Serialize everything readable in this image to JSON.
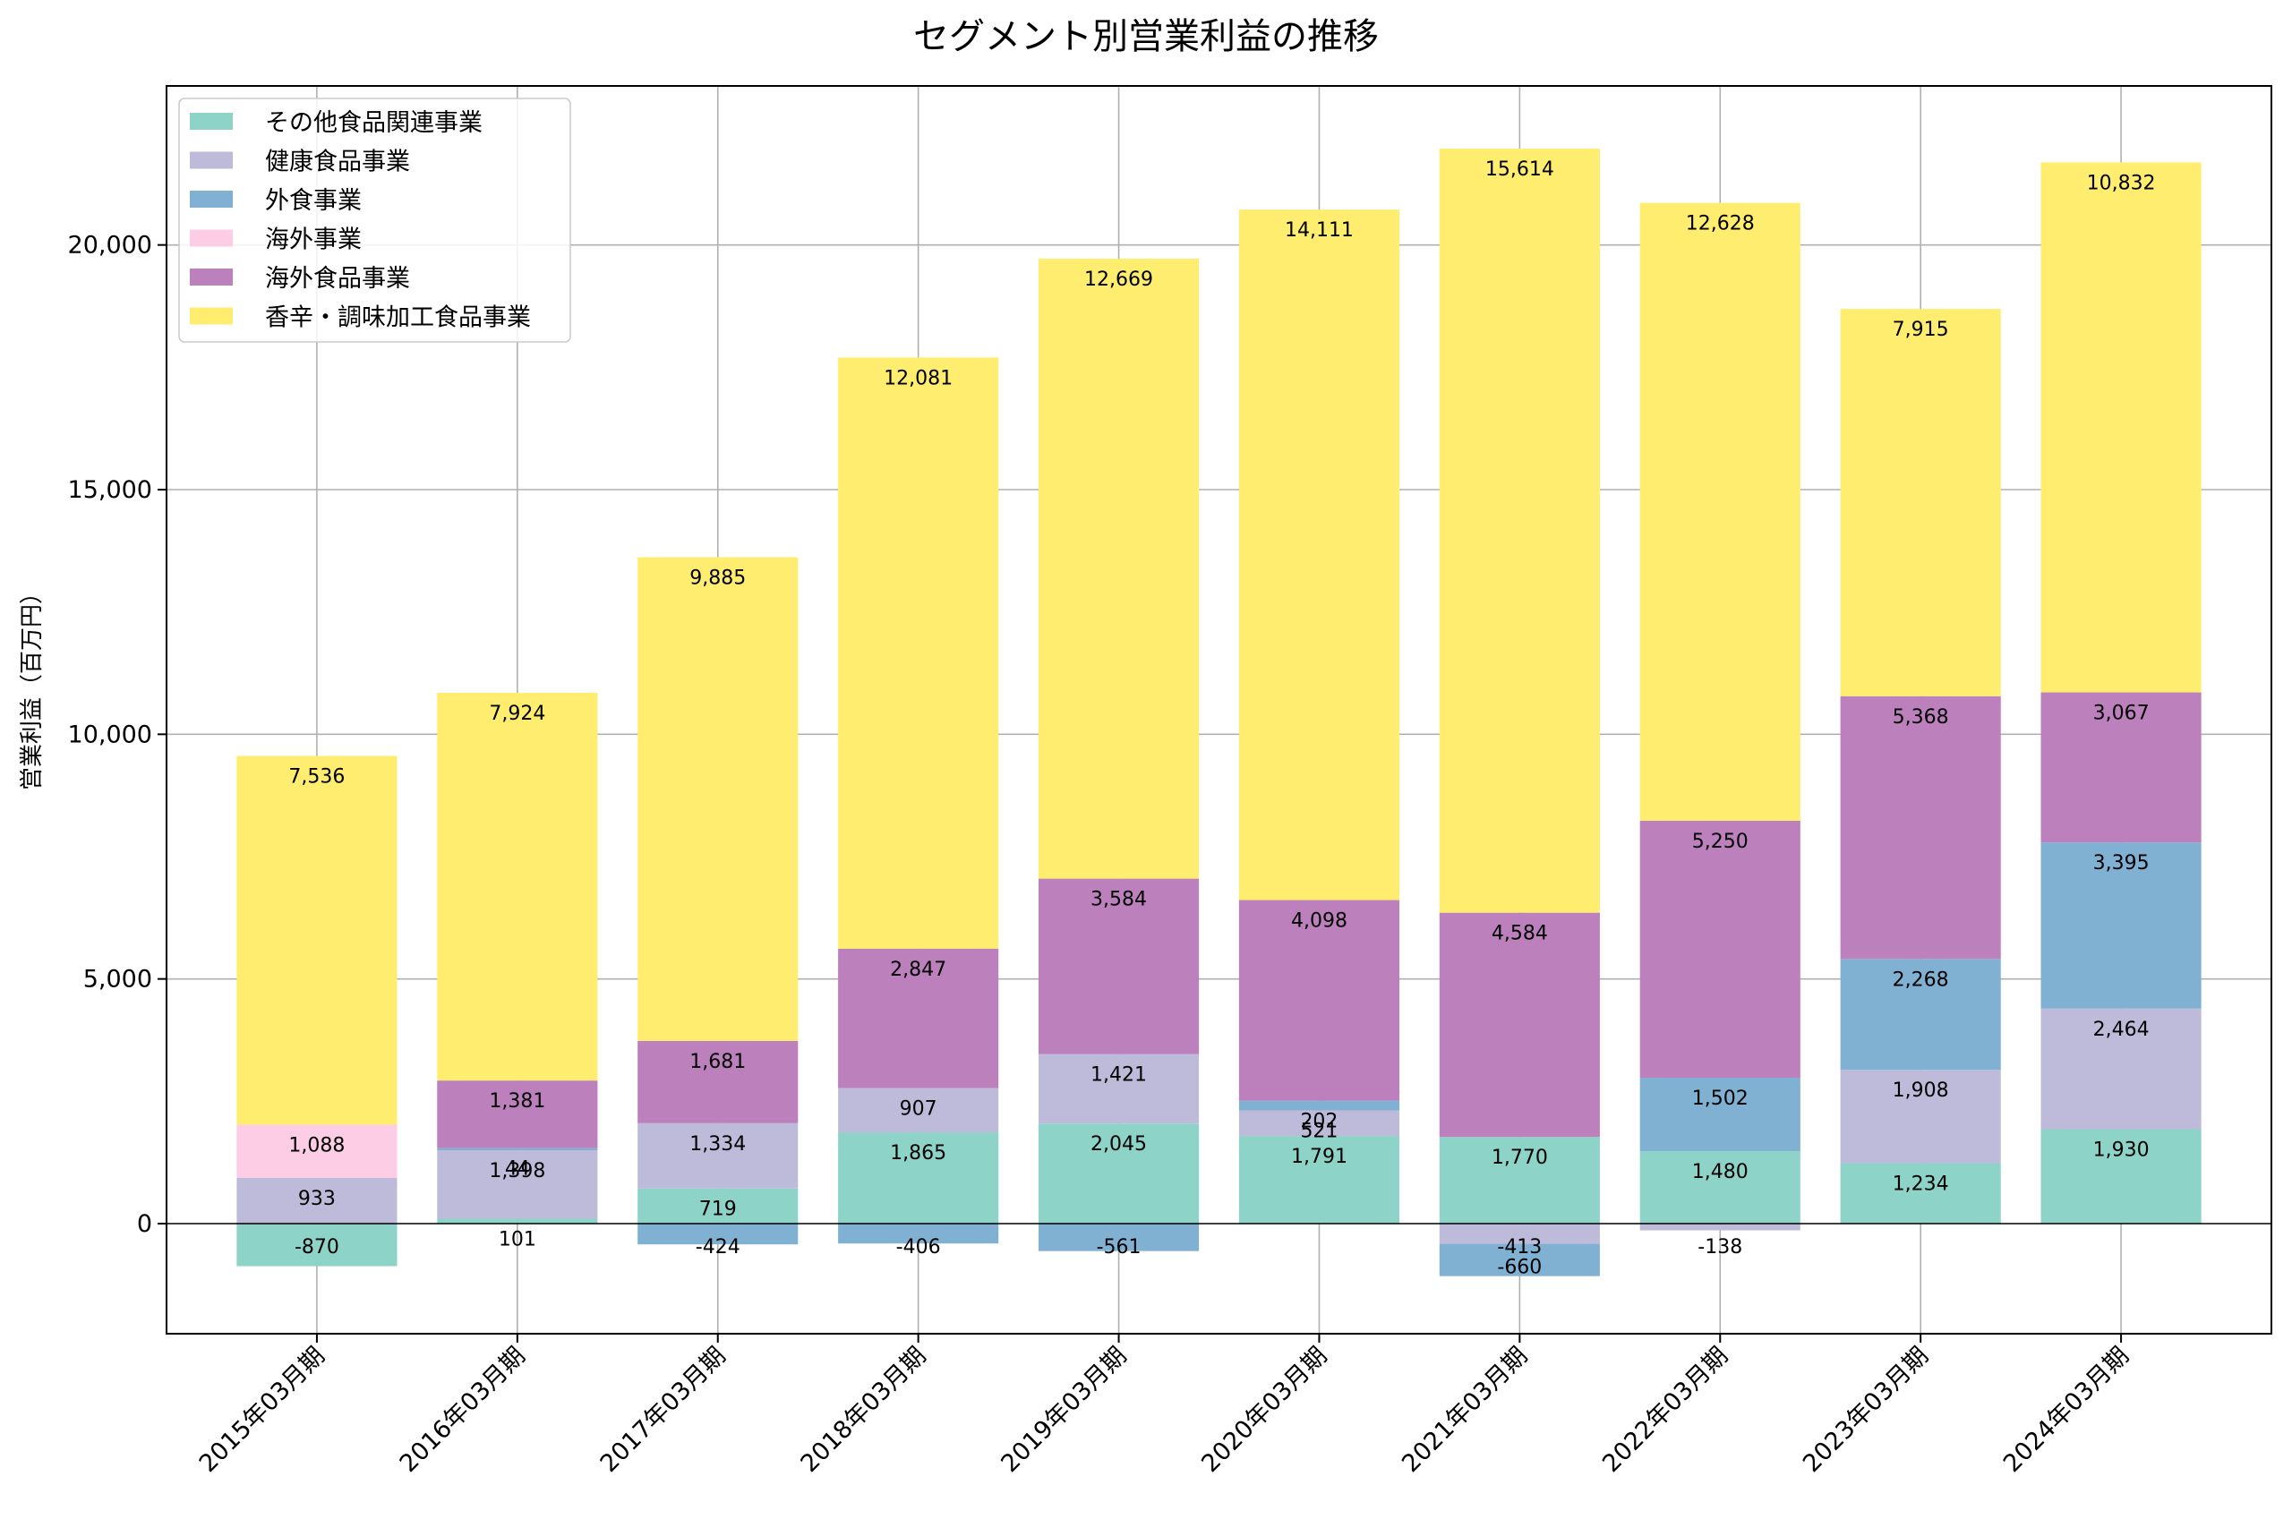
{
  "chart_data": {
    "type": "bar",
    "stacked": true,
    "title": "セグメント別営業利益の推移",
    "xlabel": "",
    "ylabel": "営業利益（百万円）",
    "ylim": [
      -2250,
      23250
    ],
    "yticks": [
      0,
      5000,
      10000,
      15000,
      20000
    ],
    "ytick_labels": [
      "0",
      "5,000",
      "10,000",
      "15,000",
      "20,000"
    ],
    "grid": true,
    "legend_position": "upper-left",
    "categories": [
      "2015年03月期",
      "2016年03月期",
      "2017年03月期",
      "2018年03月期",
      "2019年03月期",
      "2020年03月期",
      "2021年03月期",
      "2022年03月期",
      "2023年03月期",
      "2024年03月期"
    ],
    "series": [
      {
        "name": "その他食品関連事業",
        "color": "#8dd3c7",
        "values": [
          -870,
          101,
          719,
          1865,
          2045,
          1791,
          1770,
          1480,
          1234,
          1930
        ]
      },
      {
        "name": "健康食品事業",
        "color": "#bebada",
        "values": [
          933,
          1398,
          1334,
          907,
          1421,
          521,
          -413,
          -138,
          1908,
          2464
        ]
      },
      {
        "name": "外食事業",
        "color": "#80b1d3",
        "values": [
          null,
          44,
          -424,
          -406,
          -561,
          202,
          -660,
          1502,
          2268,
          3395
        ]
      },
      {
        "name": "海外事業",
        "color": "#fccde5",
        "values": [
          1088,
          null,
          null,
          null,
          null,
          null,
          null,
          null,
          null,
          null
        ]
      },
      {
        "name": "海外食品事業",
        "color": "#bc80bd",
        "values": [
          null,
          1381,
          1681,
          2847,
          3584,
          4098,
          4584,
          5250,
          5368,
          3067
        ]
      },
      {
        "name": "香辛・調味加工食品事業",
        "color": "#ffed6f",
        "values": [
          7536,
          7924,
          9885,
          12081,
          12669,
          14111,
          15614,
          12628,
          7915,
          10832
        ]
      }
    ]
  }
}
